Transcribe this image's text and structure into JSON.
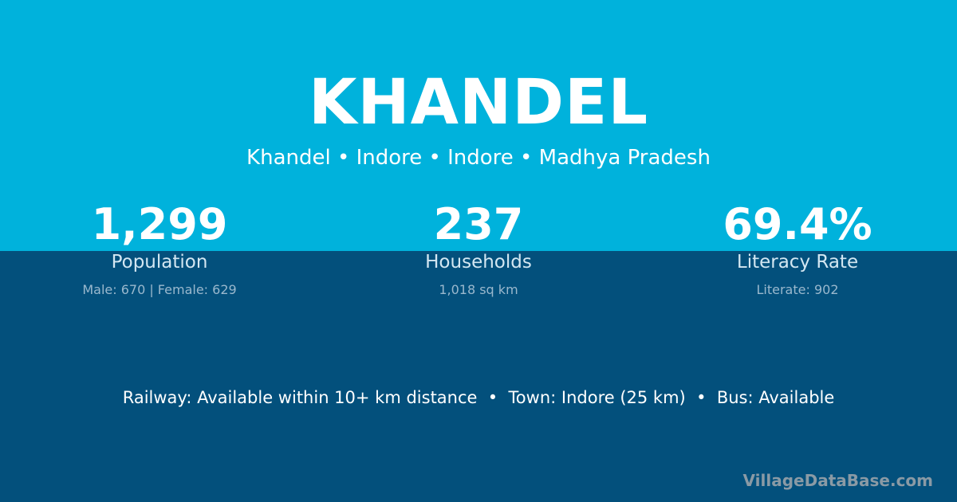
{
  "title": "KHANDEL",
  "subtitle": "Khandel • Indore • Indore • Madhya Pradesh",
  "stats": [
    {
      "value": "1,299",
      "label": "Population",
      "detail": "Male: 670 | Female: 629"
    },
    {
      "value": "237",
      "label": "Households",
      "detail": "1,018 sq km"
    },
    {
      "value": "69.4%",
      "label": "Literacy Rate",
      "detail": "Literate: 902"
    }
  ],
  "footer": "Railway: Available within 10+ km distance  •  Town: Indore (25 km)  •  Bus: Available",
  "brand": "VillageDataBase.com",
  "colors": {
    "top": "#00b2dc",
    "bottom": "#03507c"
  }
}
